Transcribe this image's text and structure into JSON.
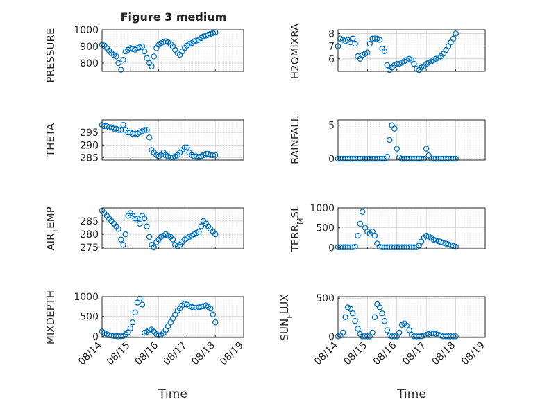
{
  "figure_title": "Figure 3 medium",
  "x_label": "Time",
  "x_ticks": [
    "08/14",
    "08/15",
    "08/16",
    "08/17",
    "08/18",
    "08/19"
  ],
  "marker_color": "#0072BD",
  "chart_data": [
    {
      "type": "scatter",
      "ylabel": "PRESSURE",
      "ylim": [
        750,
        1000
      ],
      "yticks": [
        800,
        900,
        1000
      ],
      "x": [
        0,
        0.08,
        0.17,
        0.25,
        0.33,
        0.42,
        0.5,
        0.58,
        0.67,
        0.75,
        0.83,
        0.92,
        1,
        1.08,
        1.17,
        1.25,
        1.33,
        1.42,
        1.5,
        1.58,
        1.67,
        1.75,
        1.83,
        1.92,
        2,
        2.08,
        2.17,
        2.25,
        2.33,
        2.42,
        2.5,
        2.58,
        2.67,
        2.75,
        2.83,
        2.92,
        3,
        3.08,
        3.17,
        3.25,
        3.33,
        3.42,
        3.5,
        3.58,
        3.67,
        3.75,
        3.83,
        3.92,
        4
      ],
      "y": [
        910,
        905,
        890,
        875,
        860,
        850,
        840,
        800,
        760,
        820,
        870,
        880,
        890,
        885,
        880,
        890,
        895,
        900,
        870,
        830,
        800,
        780,
        840,
        890,
        910,
        920,
        925,
        930,
        925,
        915,
        900,
        880,
        860,
        850,
        870,
        890,
        905,
        915,
        920,
        930,
        935,
        940,
        950,
        960,
        965,
        970,
        975,
        980,
        985
      ]
    },
    {
      "type": "scatter",
      "ylabel": "THETA",
      "ylim": [
        284,
        300
      ],
      "yticks": [
        285,
        290,
        295
      ],
      "x": [
        0,
        0.08,
        0.17,
        0.25,
        0.33,
        0.42,
        0.5,
        0.58,
        0.67,
        0.75,
        0.83,
        0.92,
        1,
        1.08,
        1.17,
        1.25,
        1.33,
        1.42,
        1.5,
        1.58,
        1.67,
        1.75,
        1.83,
        1.92,
        2,
        2.08,
        2.17,
        2.25,
        2.33,
        2.42,
        2.5,
        2.58,
        2.67,
        2.75,
        2.83,
        2.92,
        3,
        3.08,
        3.17,
        3.25,
        3.33,
        3.42,
        3.5,
        3.58,
        3.67,
        3.75,
        3.83,
        3.92,
        4
      ],
      "y": [
        298,
        297.5,
        297.5,
        297,
        297,
        296.5,
        296.5,
        296,
        296,
        298,
        296,
        295,
        295,
        294.5,
        294.5,
        294.5,
        295,
        295.5,
        296,
        296,
        293,
        288,
        287,
        286,
        285.5,
        286,
        287,
        286,
        285.5,
        285,
        285,
        285.5,
        286,
        287,
        288,
        289,
        289,
        287,
        286,
        285.5,
        285.5,
        285,
        285.5,
        286,
        286.5,
        286.5,
        286,
        286,
        286
      ]
    },
    {
      "type": "scatter",
      "ylabel": "AIR_TEMP",
      "ylim": [
        274.5,
        290
      ],
      "yticks": [
        275,
        280,
        285
      ],
      "x": [
        0,
        0.08,
        0.17,
        0.25,
        0.33,
        0.42,
        0.5,
        0.58,
        0.67,
        0.75,
        0.83,
        0.92,
        1,
        1.08,
        1.17,
        1.25,
        1.33,
        1.42,
        1.5,
        1.58,
        1.67,
        1.75,
        1.83,
        1.92,
        2,
        2.08,
        2.17,
        2.25,
        2.33,
        2.42,
        2.5,
        2.58,
        2.67,
        2.75,
        2.83,
        2.92,
        3,
        3.08,
        3.17,
        3.25,
        3.33,
        3.42,
        3.5,
        3.58,
        3.67,
        3.75,
        3.83,
        3.92,
        4
      ],
      "y": [
        289,
        288,
        287,
        286,
        285,
        284,
        283,
        282,
        278,
        276,
        280,
        287,
        288,
        287,
        286,
        286,
        284,
        287,
        286,
        283,
        279,
        276,
        275,
        277,
        278,
        279,
        279.5,
        280,
        279.5,
        279,
        278,
        276,
        275.5,
        276,
        277,
        278,
        278.5,
        279,
        279.5,
        280,
        280.5,
        281,
        283,
        285,
        284,
        283,
        282,
        281,
        280
      ]
    },
    {
      "type": "scatter",
      "ylabel": "MIXDEPTH",
      "ylim": [
        -30,
        1000
      ],
      "yticks": [
        0,
        500,
        1000
      ],
      "x": [
        0,
        0.08,
        0.17,
        0.25,
        0.33,
        0.42,
        0.5,
        0.58,
        0.67,
        0.75,
        0.83,
        0.92,
        1,
        1.08,
        1.17,
        1.25,
        1.33,
        1.42,
        1.5,
        1.58,
        1.67,
        1.75,
        1.83,
        1.92,
        2,
        2.08,
        2.17,
        2.25,
        2.33,
        2.42,
        2.5,
        2.58,
        2.67,
        2.75,
        2.83,
        2.92,
        3,
        3.08,
        3.17,
        3.25,
        3.33,
        3.42,
        3.5,
        3.58,
        3.67,
        3.75,
        3.83,
        3.92,
        4
      ],
      "y": [
        120,
        80,
        50,
        30,
        20,
        10,
        5,
        0,
        0,
        10,
        50,
        100,
        200,
        350,
        600,
        850,
        950,
        800,
        90,
        110,
        150,
        170,
        120,
        50,
        20,
        40,
        80,
        150,
        250,
        350,
        450,
        550,
        650,
        700,
        780,
        820,
        800,
        760,
        740,
        720,
        720,
        730,
        750,
        760,
        780,
        740,
        700,
        550,
        350
      ]
    },
    {
      "type": "scatter",
      "ylabel": "H2OMIXRA",
      "ylim": [
        5,
        8.3
      ],
      "yticks": [
        6,
        7,
        8
      ],
      "x": [
        0,
        0.08,
        0.17,
        0.25,
        0.33,
        0.42,
        0.5,
        0.58,
        0.67,
        0.75,
        0.83,
        0.92,
        1,
        1.08,
        1.17,
        1.25,
        1.33,
        1.42,
        1.5,
        1.58,
        1.67,
        1.75,
        1.83,
        1.92,
        2,
        2.08,
        2.17,
        2.25,
        2.33,
        2.42,
        2.5,
        2.58,
        2.67,
        2.75,
        2.83,
        2.92,
        3,
        3.08,
        3.17,
        3.25,
        3.33,
        3.42,
        3.5,
        3.58,
        3.67,
        3.75,
        3.83,
        3.92,
        4
      ],
      "y": [
        7,
        7.6,
        7.5,
        7.4,
        7.5,
        7.3,
        7.6,
        7.2,
        6.2,
        6,
        6.3,
        6.4,
        6.5,
        7.2,
        7.6,
        7.6,
        7.6,
        7.5,
        6.8,
        6.6,
        5.5,
        5.1,
        5.3,
        5.5,
        5.6,
        5.6,
        5.7,
        5.8,
        5.9,
        6,
        5.9,
        5.6,
        5.2,
        5.1,
        5.3,
        5.4,
        5.6,
        5.7,
        5.8,
        5.9,
        6,
        6.1,
        6.2,
        6.4,
        6.7,
        7,
        7.3,
        7.6,
        8
      ]
    },
    {
      "type": "scatter",
      "ylabel": "RAINFALL",
      "ylim": [
        -0.2,
        5.8
      ],
      "yticks": [
        0,
        5
      ],
      "x": [
        0,
        0.08,
        0.17,
        0.25,
        0.33,
        0.42,
        0.5,
        0.58,
        0.67,
        0.75,
        0.83,
        0.92,
        1,
        1.08,
        1.17,
        1.25,
        1.33,
        1.42,
        1.5,
        1.58,
        1.67,
        1.75,
        1.83,
        1.92,
        2,
        2.08,
        2.17,
        2.25,
        2.33,
        2.42,
        2.5,
        2.58,
        2.67,
        2.75,
        2.83,
        2.92,
        3,
        3.08,
        3.17,
        3.25,
        3.33,
        3.42,
        3.5,
        3.58,
        3.67,
        3.75,
        3.83,
        3.92,
        4
      ],
      "y": [
        0,
        0,
        0,
        0,
        0,
        0,
        0,
        0,
        0,
        0,
        0,
        0,
        0,
        0,
        0,
        0,
        0,
        0,
        0,
        0,
        0.3,
        2.8,
        5,
        4.5,
        1.5,
        0.2,
        0,
        0,
        0,
        0,
        0,
        0,
        0,
        0,
        0,
        0,
        1.5,
        0.5,
        0,
        0,
        0,
        0,
        0,
        0,
        0,
        0,
        0,
        0,
        0
      ]
    },
    {
      "type": "scatter",
      "ylabel": "TERR_MSL",
      "ylim": [
        -30,
        1000
      ],
      "yticks": [
        0,
        500,
        1000
      ],
      "x": [
        0,
        0.08,
        0.17,
        0.25,
        0.33,
        0.42,
        0.5,
        0.58,
        0.67,
        0.75,
        0.83,
        0.92,
        1,
        1.08,
        1.17,
        1.25,
        1.33,
        1.42,
        1.5,
        1.58,
        1.67,
        1.75,
        1.83,
        1.92,
        2,
        2.08,
        2.17,
        2.25,
        2.33,
        2.42,
        2.5,
        2.58,
        2.67,
        2.75,
        2.83,
        2.92,
        3,
        3.08,
        3.17,
        3.25,
        3.33,
        3.42,
        3.5,
        3.58,
        3.67,
        3.75,
        3.83,
        3.92,
        4
      ],
      "y": [
        10,
        10,
        10,
        10,
        10,
        10,
        10,
        20,
        300,
        600,
        900,
        500,
        400,
        350,
        400,
        300,
        100,
        20,
        10,
        10,
        10,
        10,
        10,
        10,
        10,
        10,
        10,
        10,
        10,
        10,
        10,
        10,
        10,
        50,
        150,
        250,
        300,
        280,
        250,
        200,
        180,
        160,
        140,
        120,
        100,
        80,
        60,
        40,
        20
      ]
    },
    {
      "type": "scatter",
      "ylabel": "SUN_FLUX",
      "ylim": [
        -15,
        520
      ],
      "yticks": [
        0,
        500
      ],
      "x": [
        0,
        0.08,
        0.17,
        0.25,
        0.33,
        0.42,
        0.5,
        0.58,
        0.67,
        0.75,
        0.83,
        0.92,
        1,
        1.08,
        1.17,
        1.25,
        1.33,
        1.42,
        1.5,
        1.58,
        1.67,
        1.75,
        1.83,
        1.92,
        2,
        2.08,
        2.17,
        2.25,
        2.33,
        2.42,
        2.5,
        2.58,
        2.67,
        2.75,
        2.83,
        2.92,
        3,
        3.08,
        3.17,
        3.25,
        3.33,
        3.42,
        3.5,
        3.58,
        3.67,
        3.75,
        3.83,
        3.92,
        4
      ],
      "y": [
        0,
        10,
        50,
        250,
        380,
        360,
        300,
        200,
        100,
        30,
        0,
        0,
        0,
        0,
        50,
        250,
        420,
        380,
        300,
        200,
        80,
        10,
        0,
        0,
        0,
        50,
        150,
        170,
        140,
        80,
        20,
        0,
        0,
        0,
        0,
        10,
        20,
        30,
        40,
        40,
        30,
        20,
        10,
        0,
        0,
        0,
        0,
        0,
        0
      ]
    }
  ]
}
